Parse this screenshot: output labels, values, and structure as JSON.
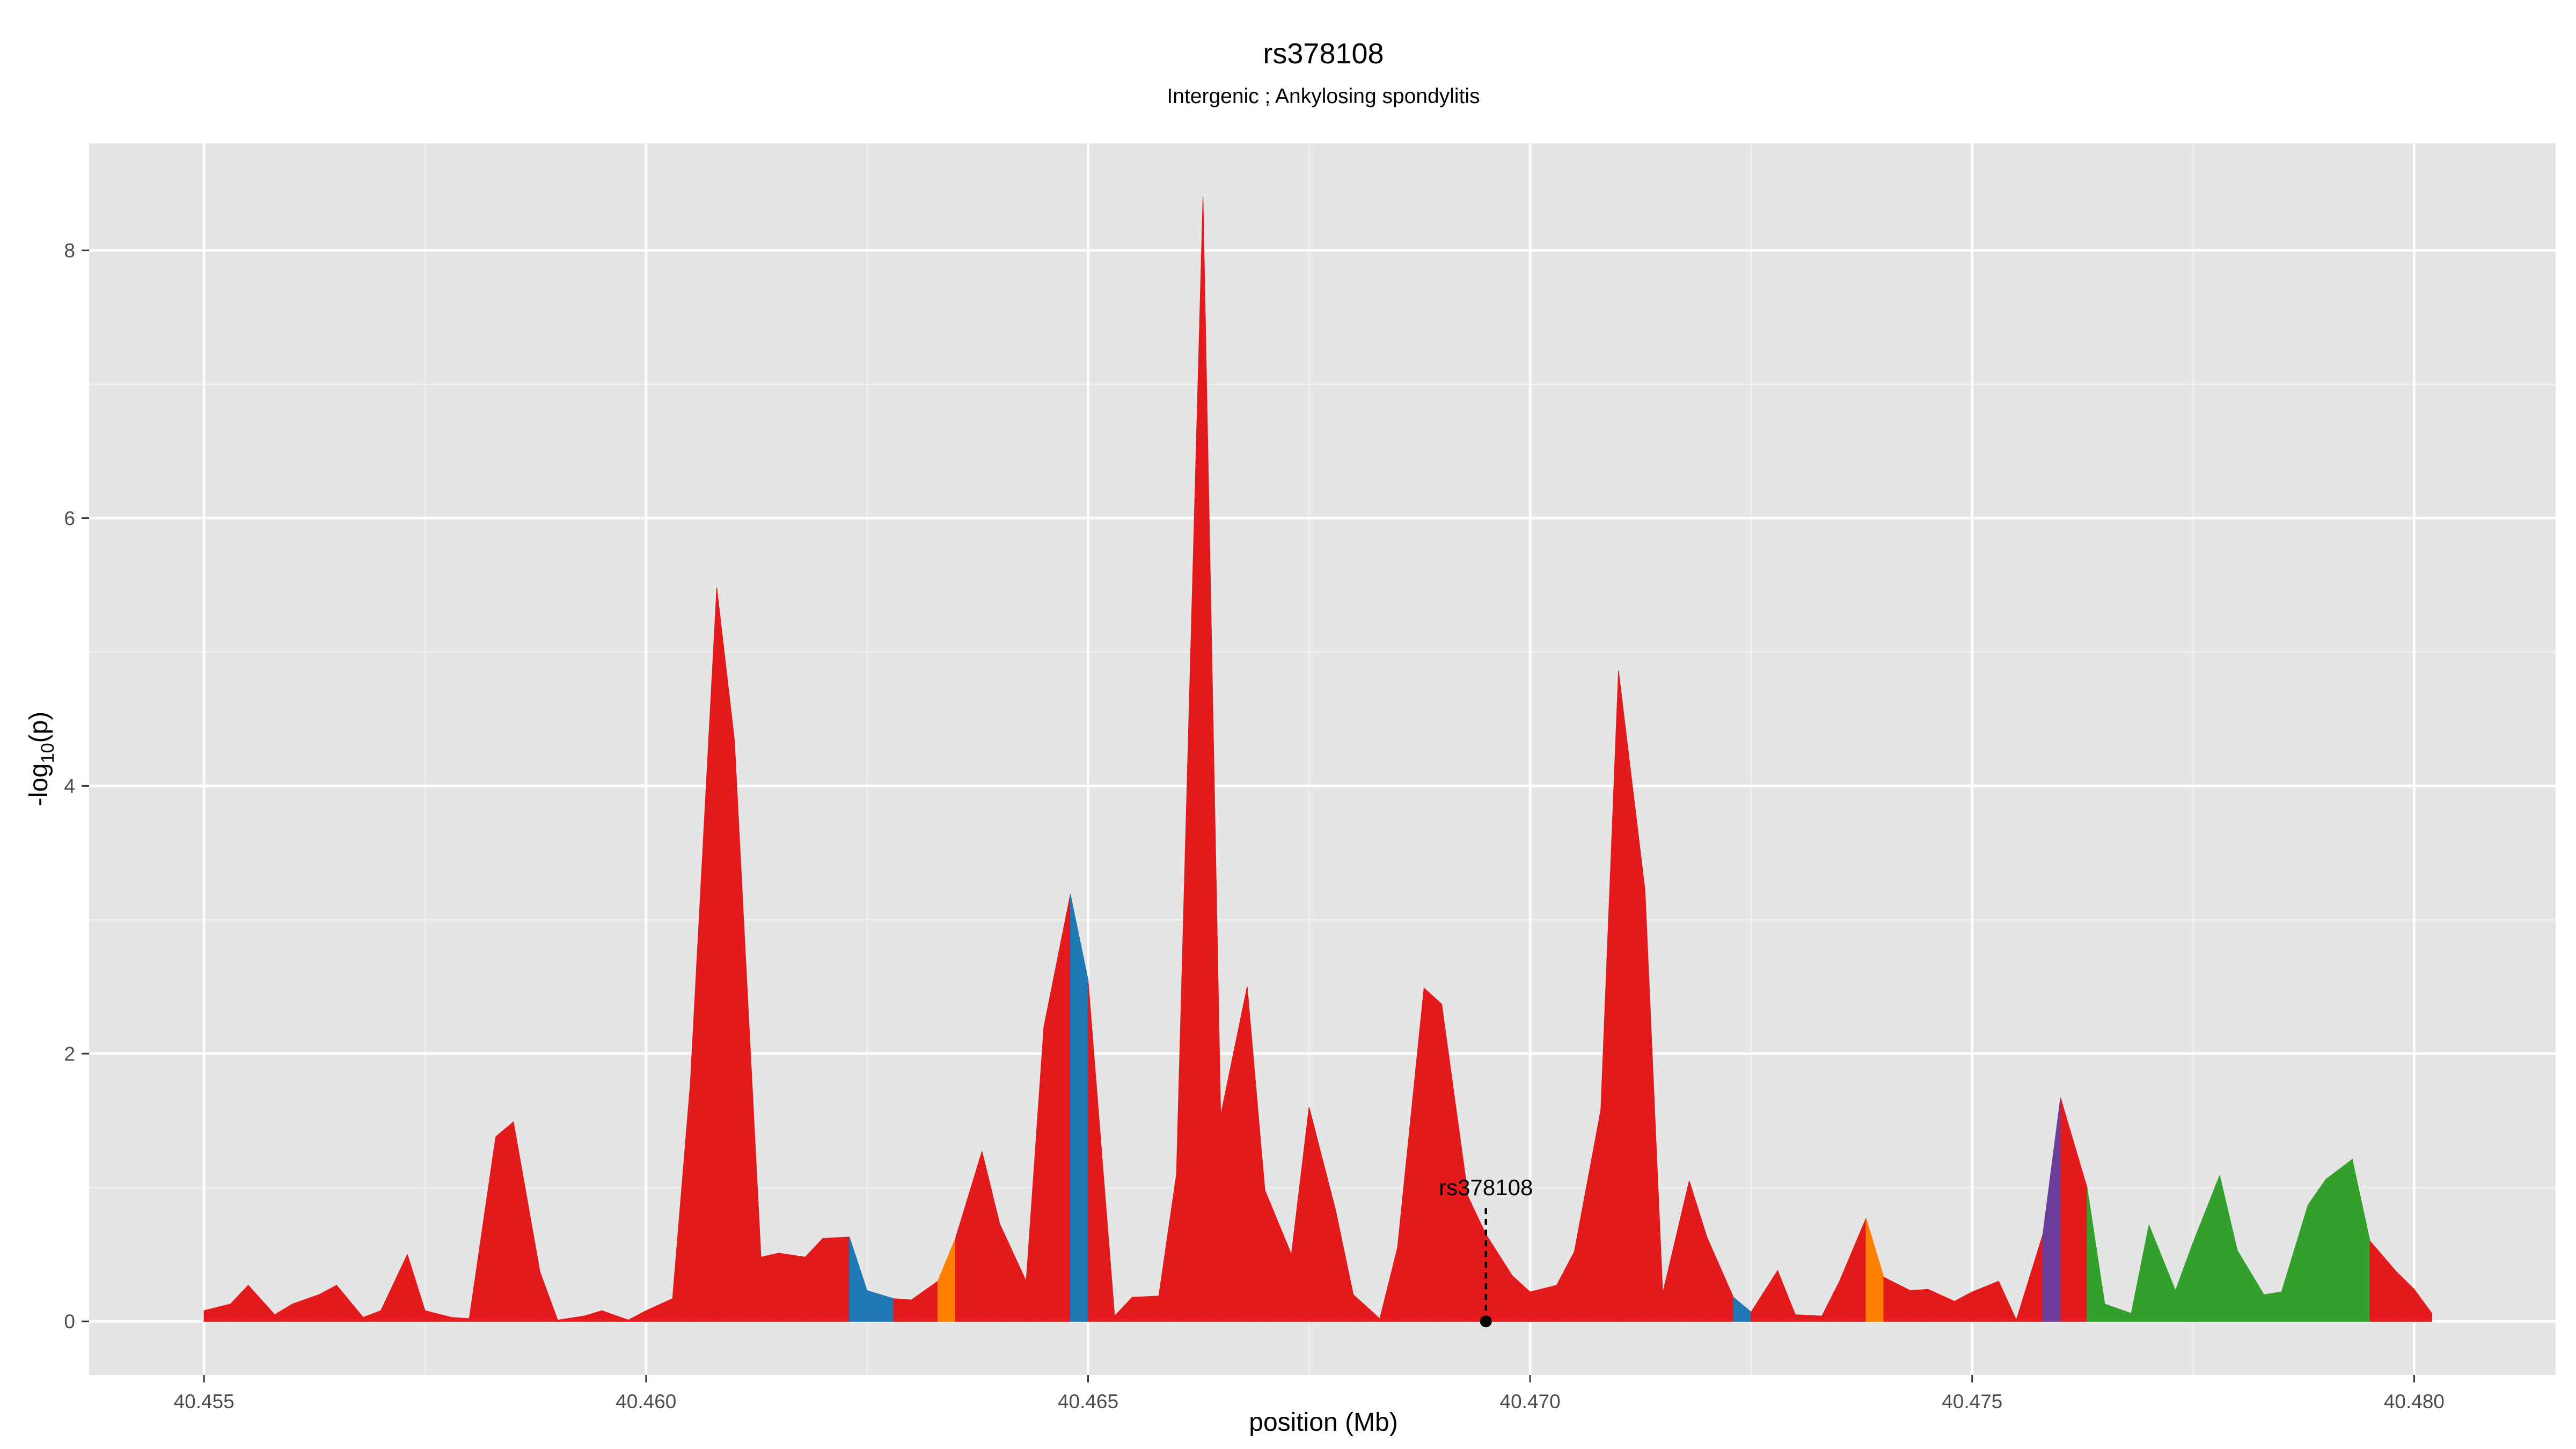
{
  "chart_data": {
    "type": "area",
    "title": "rs378108",
    "subtitle": "Intergenic ; Ankylosing spondylitis",
    "xlabel": "position (Mb)",
    "ylabel_main": "-log",
    "ylabel_sub": "10",
    "ylabel_tail": "(p)",
    "xlim": [
      40.4537,
      40.4816
    ],
    "ylim": [
      -0.4,
      8.8
    ],
    "x_ticks": [
      40.455,
      40.46,
      40.465,
      40.47,
      40.475,
      40.48
    ],
    "x_tick_labels": [
      "40.455",
      "40.460",
      "40.465",
      "40.470",
      "40.475",
      "40.480"
    ],
    "y_ticks": [
      0,
      2,
      4,
      6,
      8
    ],
    "y_tick_labels": [
      "0",
      "2",
      "4",
      "6",
      "8"
    ],
    "grid": true,
    "background": "#e5e5e5",
    "colors": {
      "red": "#e31a1c",
      "blue": "#1f78b4",
      "orange": "#ff7f00",
      "purple": "#6a3d9a",
      "green": "#33a02c"
    },
    "x": [
      40.455,
      40.4553,
      40.4555,
      40.4558,
      40.456,
      40.4563,
      40.4565,
      40.4568,
      40.457,
      40.4573,
      40.4575,
      40.4578,
      40.458,
      40.4583,
      40.4585,
      40.4588,
      40.459,
      40.4593,
      40.4595,
      40.4598,
      40.46,
      40.4603,
      40.4605,
      40.4608,
      40.461,
      40.4613,
      40.4615,
      40.4618,
      40.462,
      40.4623,
      40.4625,
      40.4628,
      40.463,
      40.4633,
      40.4635,
      40.4638,
      40.464,
      40.4643,
      40.4645,
      40.4648,
      40.465,
      40.4653,
      40.4655,
      40.4658,
      40.466,
      40.4663,
      40.4665,
      40.4668,
      40.467,
      40.4673,
      40.4675,
      40.4678,
      40.468,
      40.4683,
      40.4685,
      40.4688,
      40.469,
      40.4693,
      40.4695,
      40.4698,
      40.47,
      40.4703,
      40.4705,
      40.4708,
      40.471,
      40.4713,
      40.4715,
      40.4718,
      40.472,
      40.4723,
      40.4725,
      40.4728,
      40.473,
      40.4733,
      40.4735,
      40.4738,
      40.474,
      40.4743,
      40.4745,
      40.4748,
      40.475,
      40.4753,
      40.4755,
      40.4758,
      40.476,
      40.4763,
      40.4765,
      40.4768,
      40.477,
      40.4773,
      40.4775,
      40.4778,
      40.478,
      40.4783,
      40.4785,
      40.4788,
      40.479,
      40.4793,
      40.4795,
      40.4798,
      40.48,
      40.4802
    ],
    "y": [
      0.08,
      0.13,
      0.27,
      0.05,
      0.13,
      0.2,
      0.27,
      0.03,
      0.08,
      0.5,
      0.08,
      0.03,
      0.02,
      1.38,
      1.49,
      0.37,
      0.01,
      0.04,
      0.08,
      0.01,
      0.08,
      0.17,
      1.77,
      5.48,
      4.34,
      0.48,
      0.51,
      0.48,
      0.62,
      0.63,
      0.23,
      0.17,
      0.16,
      0.3,
      0.62,
      1.27,
      0.73,
      0.3,
      2.2,
      3.19,
      2.55,
      0.04,
      0.18,
      0.19,
      1.1,
      8.4,
      1.54,
      2.5,
      0.98,
      0.5,
      1.6,
      0.83,
      0.2,
      0.02,
      0.55,
      2.49,
      2.37,
      0.93,
      0.65,
      0.34,
      0.22,
      0.27,
      0.52,
      1.58,
      4.86,
      3.22,
      0.21,
      1.05,
      0.63,
      0.18,
      0.07,
      0.38,
      0.05,
      0.04,
      0.3,
      0.77,
      0.33,
      0.23,
      0.24,
      0.15,
      0.22,
      0.3,
      0.01,
      0.65,
      1.67,
      1.0,
      0.13,
      0.06,
      0.72,
      0.23,
      0.59,
      1.09,
      0.53,
      0.2,
      0.22,
      0.87,
      1.06,
      1.21,
      0.6,
      0.37,
      0.24,
      0.06
    ],
    "segment_colors": [
      "red",
      "red",
      "red",
      "red",
      "red",
      "red",
      "red",
      "red",
      "red",
      "red",
      "red",
      "red",
      "red",
      "red",
      "red",
      "red",
      "red",
      "red",
      "red",
      "red",
      "red",
      "red",
      "red",
      "red",
      "red",
      "red",
      "red",
      "red",
      "red",
      "blue",
      "blue",
      "red",
      "red",
      "orange",
      "red",
      "red",
      "red",
      "red",
      "red",
      "blue",
      "red",
      "red",
      "red",
      "red",
      "red",
      "red",
      "red",
      "red",
      "red",
      "red",
      "red",
      "red",
      "red",
      "red",
      "red",
      "red",
      "red",
      "red",
      "red",
      "red",
      "red",
      "red",
      "red",
      "red",
      "red",
      "red",
      "red",
      "red",
      "red",
      "blue",
      "red",
      "red",
      "red",
      "red",
      "red",
      "orange",
      "red",
      "red",
      "red",
      "red",
      "red",
      "red",
      "red",
      "purple",
      "red",
      "green",
      "green",
      "green",
      "green",
      "green",
      "green",
      "green",
      "green",
      "green",
      "green",
      "green",
      "green",
      "green",
      "red",
      "red",
      "red"
    ],
    "annotation": {
      "label": "rs378108",
      "x": 40.4695,
      "y": 0,
      "label_y": 1.0
    }
  }
}
